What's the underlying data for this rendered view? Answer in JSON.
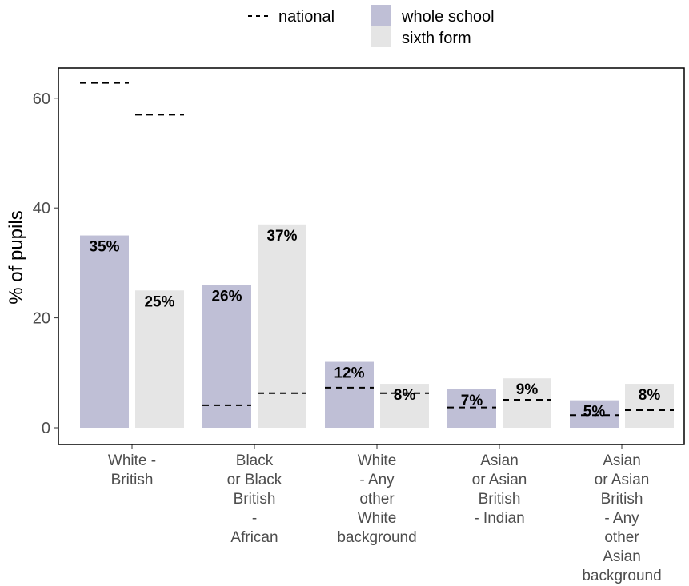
{
  "chart_data": {
    "type": "bar",
    "ylabel": "% of pupils",
    "xlabel": "",
    "ylim": [
      0,
      65
    ],
    "yticks": [
      0,
      20,
      40,
      60
    ],
    "grid": false,
    "legend_position": "top",
    "categories": [
      [
        "White -",
        "British"
      ],
      [
        "Black",
        "or Black",
        "British",
        "-",
        "African"
      ],
      [
        "White",
        "- Any",
        "other",
        "White",
        "background"
      ],
      [
        "Asian",
        "or Asian",
        "British",
        "- Indian"
      ],
      [
        "Asian",
        "or Asian",
        "British",
        "- Any",
        "other",
        "Asian",
        "background"
      ]
    ],
    "series": [
      {
        "name": "whole school",
        "color": "#bfbfd6",
        "values": [
          35,
          26,
          12,
          7,
          5
        ],
        "labels": [
          "35%",
          "26%",
          "12%",
          "7%",
          "5%"
        ]
      },
      {
        "name": "sixth form",
        "color": "#e5e5e5",
        "values": [
          25,
          37,
          8,
          9,
          8
        ],
        "labels": [
          "25%",
          "37%",
          "8%",
          "9%",
          "8%"
        ]
      }
    ],
    "national": {
      "name": "national",
      "whole_school": [
        62.8,
        4.1,
        7.3,
        3.7,
        2.3
      ],
      "sixth_form": [
        57.0,
        6.3,
        6.3,
        5.1,
        3.2
      ]
    }
  }
}
